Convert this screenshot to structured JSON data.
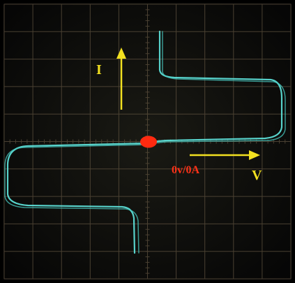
{
  "labels": {
    "current": "I",
    "voltage": "V",
    "origin": "0v/0A"
  }
}
